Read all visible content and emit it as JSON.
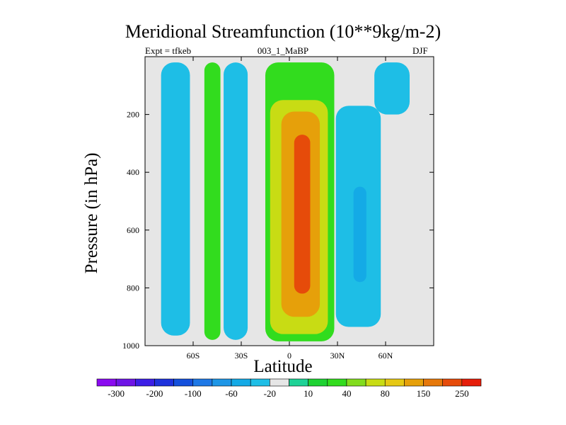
{
  "chart_data": {
    "type": "heatmap",
    "title": "Meridional Streamfunction (10**9kg/m-2)",
    "subtitle_left": "Expt = tfkeb",
    "subtitle_center": "003_1_MaBP",
    "subtitle_right": "DJF",
    "xlabel": "Latitude",
    "ylabel": "Pressure (in hPa)",
    "xlim": [
      -90,
      90
    ],
    "ylim": [
      1000,
      0
    ],
    "x_ticks": [
      {
        "value": -60,
        "label": "60S"
      },
      {
        "value": -30,
        "label": "30S"
      },
      {
        "value": 0,
        "label": "0"
      },
      {
        "value": 30,
        "label": "30N"
      },
      {
        "value": 60,
        "label": "60N"
      }
    ],
    "y_ticks": [
      {
        "value": 200,
        "label": "200"
      },
      {
        "value": 400,
        "label": "400"
      },
      {
        "value": 600,
        "label": "600"
      },
      {
        "value": 800,
        "label": "800"
      },
      {
        "value": 1000,
        "label": "1000"
      }
    ],
    "colorbar": {
      "colors": [
        "#8a0af0",
        "#6e14e6",
        "#3c1ee6",
        "#1e32dc",
        "#1450dc",
        "#1e78e6",
        "#1e96e6",
        "#14aae6",
        "#1ebee6",
        "#e6e6e6",
        "#1ed296",
        "#1ed232",
        "#32dc1e",
        "#82dc1e",
        "#c8dc14",
        "#e6c814",
        "#e6a00a",
        "#e6780a",
        "#e64b0a",
        "#e61e0a"
      ],
      "labels": [
        "-300",
        "-200",
        "-100",
        "-60",
        "-20",
        "10",
        "40",
        "80",
        "150",
        "250"
      ]
    },
    "fields": [
      {
        "level_index": 8,
        "lat": [
          -80,
          -62
        ],
        "p": [
          20,
          965
        ],
        "note": "southern negative cell"
      },
      {
        "level_index": 12,
        "lat": [
          -53,
          -43
        ],
        "p": [
          20,
          980
        ],
        "note": "southern positive band"
      },
      {
        "level_index": 8,
        "lat": [
          -41,
          -26
        ],
        "p": [
          20,
          980
        ],
        "note": "negative band"
      },
      {
        "level_index": 12,
        "lat": [
          -15,
          28
        ],
        "p": [
          20,
          985
        ],
        "note": "Hadley cell outer"
      },
      {
        "level_index": 14,
        "lat": [
          -12,
          24
        ],
        "p": [
          150,
          960
        ],
        "note": "Hadley cell"
      },
      {
        "level_index": 16,
        "lat": [
          -5,
          19
        ],
        "p": [
          190,
          900
        ],
        "note": "Hadley cell"
      },
      {
        "level_index": 18,
        "lat": [
          3,
          13
        ],
        "p": [
          270,
          820
        ],
        "note": "Hadley core"
      },
      {
        "level_index": 8,
        "lat": [
          29,
          57
        ],
        "p": [
          170,
          935
        ],
        "note": "northern negative cell"
      },
      {
        "level_index": 7,
        "lat": [
          40,
          48
        ],
        "p": [
          450,
          780
        ],
        "note": "northern negative core"
      },
      {
        "level_index": 8,
        "lat": [
          53,
          75
        ],
        "p": [
          20,
          200
        ],
        "note": "upper northern negative"
      }
    ]
  }
}
